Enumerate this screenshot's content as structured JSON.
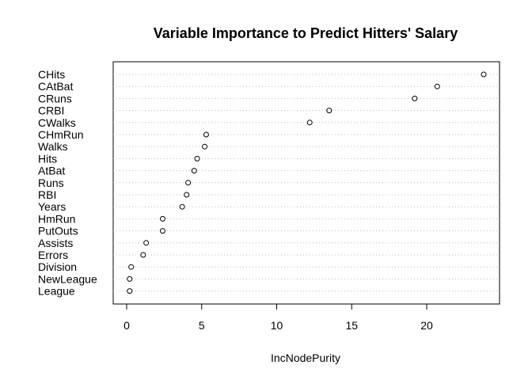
{
  "chart_data": {
    "type": "scatter",
    "subtype": "dotchart",
    "title": "Variable Importance to Predict Hitters' Salary",
    "xlabel": "IncNodePurity",
    "ylabel": "",
    "xlim": [
      0,
      24
    ],
    "xticks": [
      0,
      5,
      10,
      15,
      20
    ],
    "grid": "horizontal dotted",
    "categories": [
      "CHits",
      "CAtBat",
      "CRuns",
      "CRBI",
      "CWalks",
      "CHmRun",
      "Walks",
      "Hits",
      "AtBat",
      "Runs",
      "RBI",
      "Years",
      "HmRun",
      "PutOuts",
      "Assists",
      "Errors",
      "Division",
      "NewLeague",
      "League"
    ],
    "values": [
      23.8,
      20.7,
      19.2,
      13.5,
      12.2,
      5.3,
      5.2,
      4.7,
      4.5,
      4.1,
      4.0,
      3.7,
      2.4,
      2.4,
      1.3,
      1.1,
      0.3,
      0.2,
      0.2
    ]
  }
}
